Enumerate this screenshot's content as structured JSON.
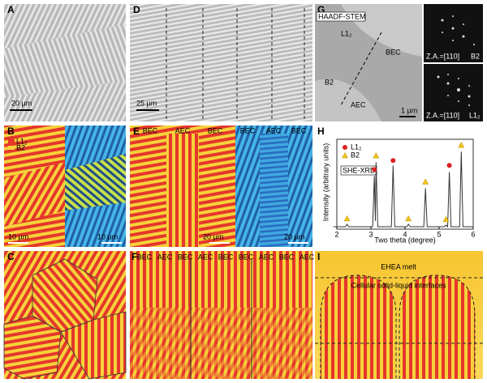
{
  "panel_a": {
    "label": "A",
    "scale": "20 µm"
  },
  "panel_b": {
    "label": "B",
    "legend": [
      "L1₂",
      "B2"
    ],
    "scale_left": "10 µm",
    "scale_right": "10 µm"
  },
  "panel_c": {
    "label": "C"
  },
  "panel_d": {
    "label": "D",
    "scale": "25 µm"
  },
  "panel_e": {
    "label": "E",
    "regions_left": [
      "BEC",
      "AEC",
      "BEC"
    ],
    "regions_right": [
      "BEC",
      "AEC",
      "BEC"
    ],
    "scale_left": "20 µm",
    "scale_right": "20 µm"
  },
  "panel_f": {
    "label": "F",
    "regions": [
      "BEC",
      "AEC",
      "BEC",
      "AEC",
      "BEC",
      "BEC",
      "AEC",
      "BEC",
      "AEC"
    ]
  },
  "panel_g": {
    "label": "G",
    "method": "HAADF-STEM",
    "phases": [
      "L1₂",
      "BEC",
      "B2",
      "AEC"
    ],
    "scale": "1 µm",
    "zone_axis_top": "Z.A.=[110]",
    "phase_top": "B2",
    "zone_axis_bottom": "Z.A.=[110]",
    "phase_bottom": "L1₂"
  },
  "panel_i": {
    "label": "I",
    "melt": "EHEA melt",
    "interface": "Cellular solid-liquid interfaces"
  },
  "chart_data": {
    "type": "line",
    "label": "H",
    "method": "SHE-XRD",
    "xlabel": "Two theta (degree)",
    "ylabel": "Intensity (arbitrary units)",
    "xlim": [
      2,
      6
    ],
    "xticks": [
      2,
      3,
      4,
      5,
      6
    ],
    "ylim": [
      0,
      1.1
    ],
    "color": "#333",
    "x": [
      1.9,
      2.25,
      2.3,
      2.35,
      3.05,
      3.1,
      3.13,
      3.15,
      3.2,
      3.6,
      3.65,
      3.7,
      4.05,
      4.1,
      4.15,
      4.55,
      4.6,
      4.65,
      5.15,
      5.2,
      5.25,
      5.3,
      5.35,
      5.6,
      5.65,
      5.7,
      6
    ],
    "values": [
      0.03,
      0.03,
      0.06,
      0.03,
      0.03,
      0.65,
      0.1,
      0.82,
      0.03,
      0.03,
      0.78,
      0.03,
      0.03,
      0.06,
      0.03,
      0.03,
      0.5,
      0.03,
      0.03,
      0.05,
      0.03,
      0.7,
      0.03,
      0.03,
      0.95,
      0.03,
      0.03
    ],
    "series": [
      {
        "name": "L1₂",
        "color": "#e02020",
        "marker": "circle",
        "x": [
          3.1,
          3.65,
          5.3
        ],
        "values": [
          0.73,
          0.84,
          0.78
        ]
      },
      {
        "name": "B2",
        "color": "#f5c518",
        "marker": "triangle",
        "x": [
          2.3,
          3.15,
          4.1,
          4.6,
          5.2,
          5.65
        ],
        "values": [
          0.13,
          0.9,
          0.13,
          0.58,
          0.12,
          1.03
        ]
      }
    ]
  }
}
